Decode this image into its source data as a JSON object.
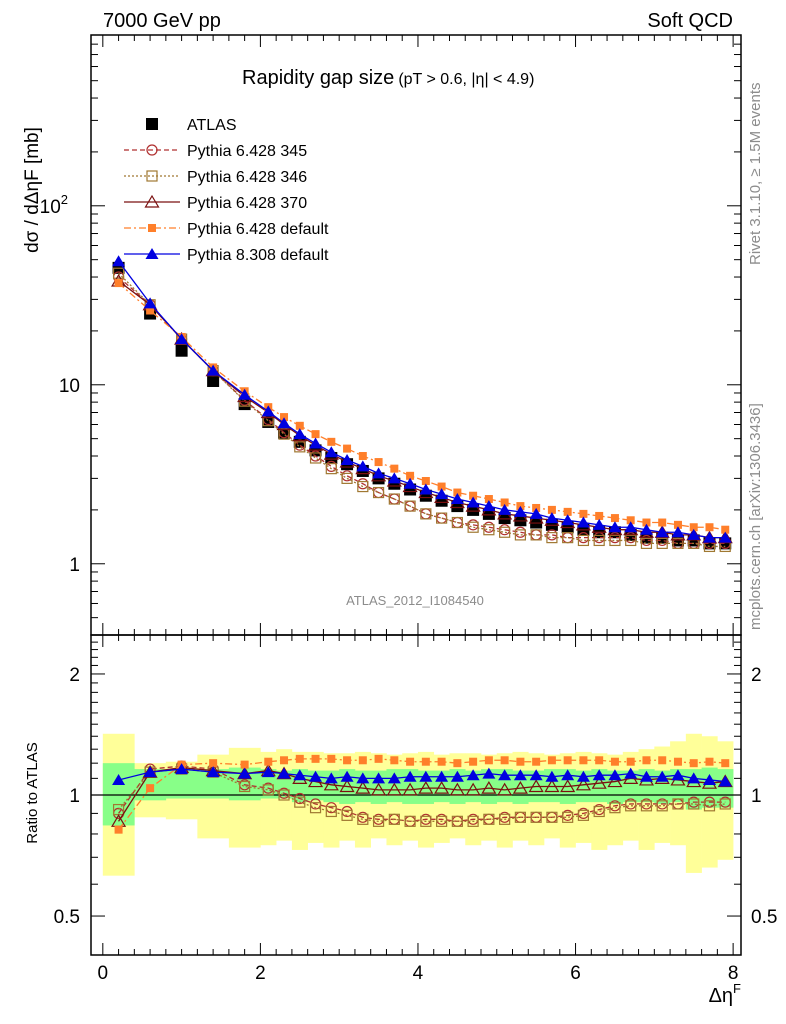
{
  "header": {
    "left": "7000 GeV pp",
    "right": "Soft QCD"
  },
  "side_labels": {
    "rivet": "Rivet 3.1.10, ≥ 1.5M events",
    "mcplots": "mcplots.cern.ch [arXiv:1306.3436]"
  },
  "colors": {
    "atlas": "#000000",
    "p345": "#b03030",
    "p346": "#a07832",
    "p370": "#7a1010",
    "p6def": "#ff7f2a",
    "p8def": "#0000e0",
    "band_inner": "#88ff88",
    "band_outer": "#ffff99"
  },
  "chart_data": [
    {
      "type": "scatter",
      "panel": "main",
      "title": "Rapidity gap size",
      "title_cuts": "(pT > 0.6, |η| < 4.9)",
      "ylabel": "dσ / dΔηF [mb]",
      "xlabel": "",
      "watermark": "ATLAS_2012_I1084540",
      "yscale": "log",
      "ylim": [
        0.4,
        900
      ],
      "xlim": [
        -0.15,
        8.1
      ],
      "yticks": [
        {
          "v": 1,
          "label": "1"
        },
        {
          "v": 10,
          "label": "10"
        },
        {
          "v": 100,
          "label": "10",
          "sup": "2"
        }
      ],
      "legend_position": "top-left",
      "x": [
        0.2,
        0.6,
        1.0,
        1.4,
        1.8,
        2.1,
        2.3,
        2.5,
        2.7,
        2.9,
        3.1,
        3.3,
        3.5,
        3.7,
        3.9,
        4.1,
        4.3,
        4.5,
        4.7,
        4.9,
        5.1,
        5.3,
        5.5,
        5.7,
        5.9,
        6.1,
        6.3,
        6.5,
        6.7,
        6.9,
        7.1,
        7.3,
        7.5,
        7.7,
        7.9
      ],
      "series": [
        {
          "name": "ATLAS",
          "key": "atlas",
          "marker": "filled-square",
          "line": "none",
          "values": [
            45,
            25,
            15.5,
            10.5,
            7.8,
            6.2,
            5.4,
            4.8,
            4.3,
            3.9,
            3.6,
            3.3,
            3.0,
            2.8,
            2.6,
            2.4,
            2.25,
            2.1,
            2.0,
            1.9,
            1.8,
            1.75,
            1.7,
            1.65,
            1.6,
            1.55,
            1.5,
            1.5,
            1.45,
            1.4,
            1.4,
            1.35,
            1.35,
            1.3,
            1.3
          ]
        },
        {
          "name": "Pythia 6.428 345",
          "key": "p345",
          "marker": "open-circle",
          "line": "dashed",
          "values": [
            40,
            28,
            18,
            12,
            8.2,
            6.4,
            5.4,
            4.6,
            4.0,
            3.5,
            3.1,
            2.8,
            2.5,
            2.3,
            2.1,
            1.9,
            1.8,
            1.7,
            1.65,
            1.6,
            1.55,
            1.5,
            1.45,
            1.45,
            1.4,
            1.4,
            1.4,
            1.4,
            1.4,
            1.35,
            1.35,
            1.3,
            1.3,
            1.3,
            1.3
          ]
        },
        {
          "name": "Pythia 6.428 346",
          "key": "p346",
          "marker": "open-square",
          "line": "dotted",
          "values": [
            42,
            28,
            18,
            12,
            8.1,
            6.3,
            5.3,
            4.5,
            3.9,
            3.4,
            3.0,
            2.7,
            2.5,
            2.3,
            2.1,
            1.9,
            1.8,
            1.7,
            1.6,
            1.55,
            1.5,
            1.45,
            1.45,
            1.4,
            1.4,
            1.35,
            1.35,
            1.35,
            1.35,
            1.3,
            1.3,
            1.3,
            1.3,
            1.25,
            1.25
          ]
        },
        {
          "name": "Pythia 6.428 370",
          "key": "p370",
          "marker": "open-triangle",
          "line": "solid",
          "values": [
            38,
            28,
            18,
            12,
            8.6,
            7.0,
            6.0,
            5.2,
            4.6,
            4.1,
            3.7,
            3.4,
            3.1,
            2.9,
            2.7,
            2.5,
            2.35,
            2.2,
            2.1,
            2.0,
            1.9,
            1.85,
            1.8,
            1.75,
            1.7,
            1.65,
            1.6,
            1.55,
            1.55,
            1.5,
            1.5,
            1.45,
            1.45,
            1.4,
            1.4
          ]
        },
        {
          "name": "Pythia 6.428 default",
          "key": "p6def",
          "marker": "filled-square-small",
          "line": "dashdot",
          "values": [
            37,
            26,
            18.5,
            12.5,
            9.2,
            7.5,
            6.6,
            5.9,
            5.3,
            4.8,
            4.4,
            4.0,
            3.7,
            3.4,
            3.1,
            2.9,
            2.7,
            2.5,
            2.4,
            2.3,
            2.2,
            2.1,
            2.05,
            2.0,
            1.95,
            1.9,
            1.85,
            1.8,
            1.75,
            1.7,
            1.7,
            1.65,
            1.6,
            1.6,
            1.55
          ]
        },
        {
          "name": "Pythia 8.308 default",
          "key": "p8def",
          "marker": "filled-triangle",
          "line": "solid",
          "values": [
            49,
            28.5,
            18,
            12,
            8.8,
            7.1,
            6.1,
            5.3,
            4.7,
            4.2,
            3.8,
            3.5,
            3.2,
            3.0,
            2.8,
            2.6,
            2.45,
            2.3,
            2.2,
            2.1,
            2.0,
            1.95,
            1.9,
            1.8,
            1.75,
            1.7,
            1.65,
            1.6,
            1.6,
            1.55,
            1.5,
            1.5,
            1.45,
            1.4,
            1.4
          ]
        }
      ]
    },
    {
      "type": "scatter",
      "panel": "ratio",
      "ylabel": "Ratio to ATLAS",
      "xlabel": "ΔηF",
      "yscale": "log",
      "ylim": [
        0.4,
        2.5
      ],
      "xlim": [
        -0.15,
        8.1
      ],
      "yticks": [
        {
          "v": 0.5,
          "label": "0.5"
        },
        {
          "v": 1,
          "label": "1"
        },
        {
          "v": 2,
          "label": "2"
        }
      ],
      "xticks": [
        0,
        2,
        4,
        6,
        8
      ],
      "band_edges": [
        0.0,
        0.4,
        0.8,
        1.2,
        1.6,
        2.0,
        2.2,
        2.4,
        2.6,
        2.8,
        3.0,
        3.2,
        3.4,
        3.6,
        3.8,
        4.0,
        4.2,
        4.4,
        4.6,
        4.8,
        5.0,
        5.2,
        5.4,
        5.6,
        5.8,
        6.0,
        6.2,
        6.4,
        6.6,
        6.8,
        7.0,
        7.2,
        7.4,
        7.6,
        7.8,
        8.0
      ],
      "band_inner": [
        [
          0.84,
          1.2
        ],
        [
          0.97,
          1.16
        ],
        [
          0.98,
          1.16
        ],
        [
          0.98,
          1.16
        ],
        [
          0.97,
          1.17
        ],
        [
          0.98,
          1.16
        ],
        [
          0.98,
          1.15
        ],
        [
          0.96,
          1.16
        ],
        [
          0.97,
          1.15
        ],
        [
          0.96,
          1.15
        ],
        [
          0.95,
          1.16
        ],
        [
          0.96,
          1.15
        ],
        [
          0.95,
          1.15
        ],
        [
          0.96,
          1.16
        ],
        [
          0.95,
          1.16
        ],
        [
          0.95,
          1.15
        ],
        [
          0.96,
          1.15
        ],
        [
          0.95,
          1.16
        ],
        [
          0.96,
          1.15
        ],
        [
          0.95,
          1.16
        ],
        [
          0.96,
          1.16
        ],
        [
          0.95,
          1.15
        ],
        [
          0.96,
          1.15
        ],
        [
          0.96,
          1.16
        ],
        [
          0.95,
          1.16
        ],
        [
          0.96,
          1.15
        ],
        [
          0.96,
          1.16
        ],
        [
          0.95,
          1.15
        ],
        [
          0.96,
          1.15
        ],
        [
          0.96,
          1.16
        ],
        [
          0.95,
          1.15
        ],
        [
          0.96,
          1.16
        ],
        [
          0.92,
          1.16
        ],
        [
          0.93,
          1.17
        ],
        [
          0.93,
          1.16
        ]
      ],
      "band_outer": [
        [
          0.63,
          1.42
        ],
        [
          0.88,
          1.2
        ],
        [
          0.87,
          1.21
        ],
        [
          0.78,
          1.26
        ],
        [
          0.74,
          1.31
        ],
        [
          0.75,
          1.28
        ],
        [
          0.77,
          1.3
        ],
        [
          0.73,
          1.28
        ],
        [
          0.76,
          1.28
        ],
        [
          0.74,
          1.27
        ],
        [
          0.77,
          1.27
        ],
        [
          0.74,
          1.28
        ],
        [
          0.78,
          1.27
        ],
        [
          0.75,
          1.26
        ],
        [
          0.77,
          1.27
        ],
        [
          0.74,
          1.28
        ],
        [
          0.76,
          1.26
        ],
        [
          0.78,
          1.27
        ],
        [
          0.75,
          1.27
        ],
        [
          0.77,
          1.26
        ],
        [
          0.74,
          1.27
        ],
        [
          0.77,
          1.28
        ],
        [
          0.75,
          1.27
        ],
        [
          0.78,
          1.26
        ],
        [
          0.74,
          1.27
        ],
        [
          0.76,
          1.28
        ],
        [
          0.73,
          1.27
        ],
        [
          0.75,
          1.26
        ],
        [
          0.77,
          1.28
        ],
        [
          0.73,
          1.3
        ],
        [
          0.76,
          1.32
        ],
        [
          0.75,
          1.36
        ],
        [
          0.64,
          1.42
        ],
        [
          0.66,
          1.4
        ],
        [
          0.69,
          1.36
        ]
      ],
      "x": [
        0.2,
        0.6,
        1.0,
        1.4,
        1.8,
        2.1,
        2.3,
        2.5,
        2.7,
        2.9,
        3.1,
        3.3,
        3.5,
        3.7,
        3.9,
        4.1,
        4.3,
        4.5,
        4.7,
        4.9,
        5.1,
        5.3,
        5.5,
        5.7,
        5.9,
        6.1,
        6.3,
        6.5,
        6.7,
        6.9,
        7.1,
        7.3,
        7.5,
        7.7,
        7.9
      ],
      "series": [
        {
          "name": "Pythia 6.428 345",
          "key": "p345",
          "marker": "open-circle",
          "line": "dashed",
          "values": [
            0.9,
            1.16,
            1.18,
            1.16,
            1.06,
            1.04,
            1.01,
            0.98,
            0.95,
            0.93,
            0.91,
            0.88,
            0.87,
            0.87,
            0.86,
            0.87,
            0.87,
            0.86,
            0.87,
            0.87,
            0.88,
            0.88,
            0.88,
            0.88,
            0.89,
            0.9,
            0.92,
            0.94,
            0.95,
            0.95,
            0.95,
            0.95,
            0.96,
            0.96,
            0.96
          ]
        },
        {
          "name": "Pythia 6.428 346",
          "key": "p346",
          "marker": "open-square",
          "line": "dotted",
          "values": [
            0.92,
            1.14,
            1.16,
            1.14,
            1.05,
            1.03,
            1.0,
            0.96,
            0.93,
            0.91,
            0.89,
            0.87,
            0.86,
            0.87,
            0.86,
            0.86,
            0.86,
            0.86,
            0.86,
            0.87,
            0.87,
            0.88,
            0.88,
            0.88,
            0.88,
            0.89,
            0.91,
            0.93,
            0.94,
            0.94,
            0.94,
            0.95,
            0.95,
            0.94,
            0.95
          ]
        },
        {
          "name": "Pythia 6.428 370",
          "key": "p370",
          "marker": "open-triangle",
          "line": "solid",
          "values": [
            0.86,
            1.14,
            1.17,
            1.15,
            1.13,
            1.15,
            1.13,
            1.1,
            1.08,
            1.06,
            1.05,
            1.04,
            1.03,
            1.03,
            1.03,
            1.04,
            1.04,
            1.03,
            1.03,
            1.04,
            1.03,
            1.04,
            1.05,
            1.05,
            1.05,
            1.06,
            1.07,
            1.08,
            1.1,
            1.09,
            1.1,
            1.09,
            1.08,
            1.07,
            1.08
          ]
        },
        {
          "name": "Pythia 6.428 default",
          "key": "p6def",
          "marker": "filled-square-small",
          "line": "dashdot",
          "values": [
            0.82,
            1.04,
            1.19,
            1.2,
            1.19,
            1.21,
            1.22,
            1.23,
            1.23,
            1.23,
            1.22,
            1.22,
            1.23,
            1.22,
            1.21,
            1.21,
            1.21,
            1.2,
            1.21,
            1.22,
            1.22,
            1.21,
            1.21,
            1.22,
            1.22,
            1.22,
            1.22,
            1.21,
            1.21,
            1.22,
            1.22,
            1.21,
            1.2,
            1.21,
            1.2
          ]
        },
        {
          "name": "Pythia 8.308 default",
          "key": "p8def",
          "marker": "filled-triangle",
          "line": "solid",
          "values": [
            1.09,
            1.14,
            1.16,
            1.14,
            1.13,
            1.14,
            1.13,
            1.12,
            1.11,
            1.1,
            1.11,
            1.1,
            1.1,
            1.1,
            1.11,
            1.11,
            1.11,
            1.11,
            1.12,
            1.13,
            1.12,
            1.12,
            1.12,
            1.11,
            1.12,
            1.11,
            1.12,
            1.12,
            1.13,
            1.11,
            1.11,
            1.12,
            1.1,
            1.09,
            1.08
          ]
        }
      ]
    }
  ]
}
